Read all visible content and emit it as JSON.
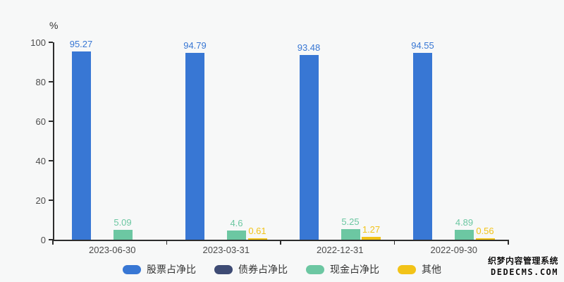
{
  "chart_data": {
    "type": "bar",
    "title": "",
    "xlabel": "",
    "ylabel": "%",
    "ylim": [
      0,
      100
    ],
    "ytick_step": 20,
    "grid": false,
    "legend_position": "bottom",
    "categories": [
      "2023-06-30",
      "2023-03-31",
      "2022-12-31",
      "2022-09-30"
    ],
    "series": [
      {
        "name": "股票占净比",
        "color": "#3877d4",
        "values": [
          95.27,
          94.79,
          93.48,
          94.55
        ]
      },
      {
        "name": "债券占净比",
        "color": "#3e4b74",
        "values": [
          null,
          null,
          null,
          null
        ]
      },
      {
        "name": "现金占净比",
        "color": "#6cc7a2",
        "values": [
          5.09,
          4.6,
          5.25,
          4.89
        ]
      },
      {
        "name": "其他",
        "color": "#f2c318",
        "values": [
          null,
          0.61,
          1.27,
          0.56
        ]
      }
    ]
  },
  "watermark": {
    "line1": "织梦内容管理系统",
    "line2": "DEDECMS.COM"
  },
  "colors": {
    "background": "#f7f8f8",
    "axis": "#2d2d2d",
    "tick_label": "#4c4c4c",
    "legend_text": "#333333"
  }
}
